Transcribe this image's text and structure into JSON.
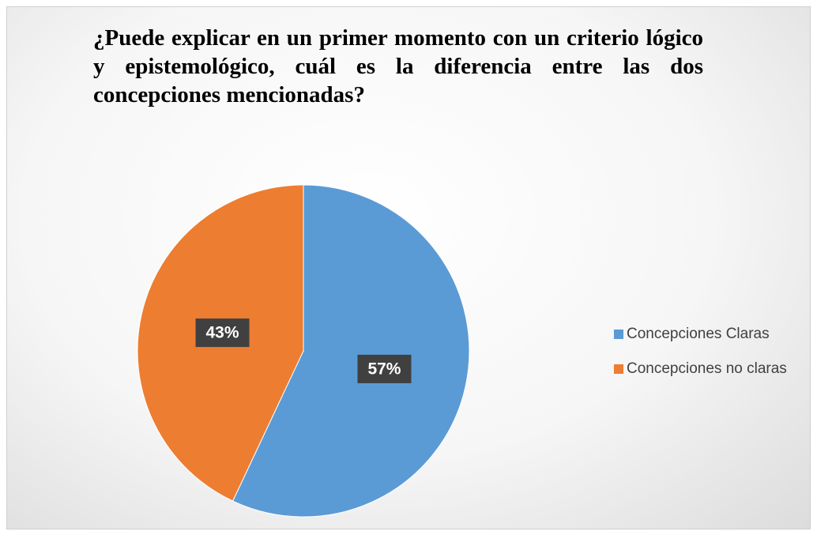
{
  "chart_data": {
    "type": "pie",
    "title": "¿Puede explicar en un primer momento con un criterio lógico y epistemológico, cuál es la diferencia entre las dos concepciones mencionadas?",
    "categories": [
      "Concepciones Claras",
      "Concepciones no claras"
    ],
    "values": [
      57,
      43
    ],
    "value_labels": [
      "57%",
      "43%"
    ],
    "colors": [
      "#5b9bd5",
      "#ed7d31"
    ],
    "legend": "right"
  }
}
